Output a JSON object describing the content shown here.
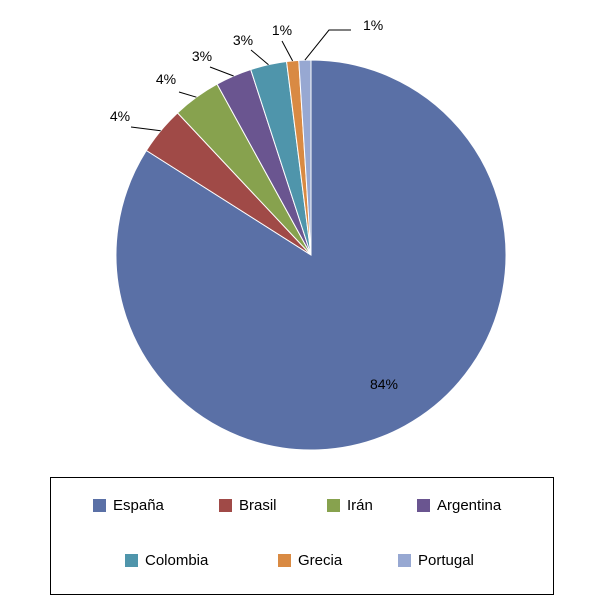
{
  "chart_data": {
    "type": "pie",
    "title": "",
    "categories": [
      "España",
      "Brasil",
      "Irán",
      "Argentina",
      "Colombia",
      "Grecia",
      "Portugal"
    ],
    "values": [
      84,
      4,
      4,
      3,
      3,
      1,
      1
    ],
    "labels": [
      "84%",
      "4%",
      "4%",
      "3%",
      "3%",
      "1%",
      "1%"
    ],
    "colors": [
      "#5A70A6",
      "#A04A47",
      "#87A24E",
      "#6A5590",
      "#4F95AB",
      "#D98A43",
      "#97A8D2"
    ],
    "legend_position": "bottom"
  },
  "legend": {
    "items": [
      {
        "label": "España",
        "color": "#5A70A6"
      },
      {
        "label": "Brasil",
        "color": "#A04A47"
      },
      {
        "label": "Irán",
        "color": "#87A24E"
      },
      {
        "label": "Argentina",
        "color": "#6A5590"
      },
      {
        "label": "Colombia",
        "color": "#4F95AB"
      },
      {
        "label": "Grecia",
        "color": "#D98A43"
      },
      {
        "label": "Portugal",
        "color": "#97A8D2"
      }
    ]
  }
}
